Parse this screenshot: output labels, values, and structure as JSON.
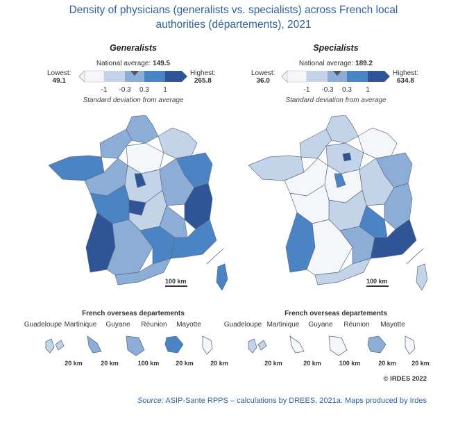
{
  "title": {
    "line1": "Density of physicians (generalists vs. specialists) across French local",
    "line2": "authorities (départements), 2021"
  },
  "colors": {
    "class_lowest": "#f4f6fa",
    "class_low": "#c4d4e8",
    "class_mid": "#8caed6",
    "class_high": "#4a84c4",
    "class_highest": "#2f5596",
    "border": "#5d6b88",
    "title": "#2f5f9a"
  },
  "panels": [
    {
      "title": "Generalists",
      "national_average_label": "National average:",
      "national_average_value": "149.5",
      "lowest_label": "Lowest:",
      "lowest_value": "49.1",
      "highest_label": "Highest:",
      "highest_value": "265.8",
      "ticks": [
        "-1",
        "-0.3",
        "0.3",
        "1"
      ],
      "sd_label": "Standard deviation from average",
      "scale_label": "100 km",
      "overseas_title": "French overseas departements",
      "territories": [
        {
          "name": "Guadeloupe",
          "scale": "20 km",
          "class": "class_low"
        },
        {
          "name": "Martinique",
          "scale": "20 km",
          "class": "class_mid"
        },
        {
          "name": "Guyane",
          "scale": "100 km",
          "class": "class_mid"
        },
        {
          "name": "Réunion",
          "scale": "20 km",
          "class": "class_high"
        },
        {
          "name": "Mayotte",
          "scale": "20 km",
          "class": "class_lowest"
        }
      ]
    },
    {
      "title": "Specialists",
      "national_average_label": "National average:",
      "national_average_value": "189.2",
      "lowest_label": "Lowest:",
      "lowest_value": "36.0",
      "highest_label": "Highest:",
      "highest_value": "634.8",
      "ticks": [
        "-1",
        "-0.3",
        "0.3",
        "1"
      ],
      "sd_label": "Standard deviation from average",
      "scale_label": "100 km",
      "overseas_title": "French overseas departements",
      "territories": [
        {
          "name": "Guadeloupe",
          "scale": "20 km",
          "class": "class_low"
        },
        {
          "name": "Martinique",
          "scale": "20 km",
          "class": "class_lowest"
        },
        {
          "name": "Guyane",
          "scale": "100 km",
          "class": "class_lowest"
        },
        {
          "name": "Réunion",
          "scale": "20 km",
          "class": "class_mid"
        },
        {
          "name": "Mayotte",
          "scale": "20 km",
          "class": "class_lowest"
        }
      ]
    }
  ],
  "copyright": "© IRDES 2022",
  "source_label": "Source:",
  "source_text": " ASIP-Sante RPPS – calculations by DREES, 2021a. Maps produced by Irdes"
}
